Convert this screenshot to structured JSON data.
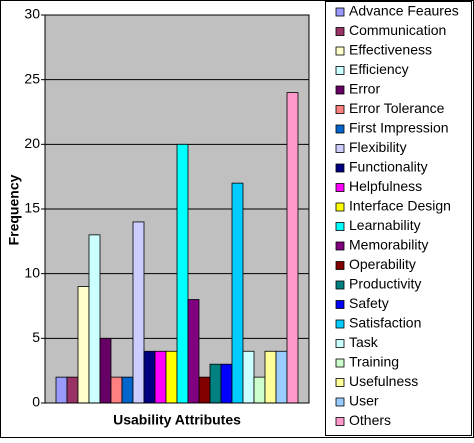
{
  "chart_data": {
    "type": "bar",
    "x_label": "Usability Attributes",
    "y_label": "Frequency",
    "categories": [
      null
    ],
    "ylim": [
      0,
      30
    ],
    "yticks": [
      0,
      5,
      10,
      15,
      20,
      25,
      30
    ],
    "grid": true,
    "legend": "right",
    "series": [
      {
        "name": "Advance Feaures",
        "color": "#9999ff",
        "values": [
          2
        ]
      },
      {
        "name": "Communication",
        "color": "#993366",
        "values": [
          2
        ]
      },
      {
        "name": "Effectiveness",
        "color": "#ffffcc",
        "values": [
          9
        ]
      },
      {
        "name": "Efficiency",
        "color": "#ccffff",
        "values": [
          13
        ]
      },
      {
        "name": "Error",
        "color": "#660066",
        "values": [
          5
        ]
      },
      {
        "name": "Error Tolerance",
        "color": "#ff8080",
        "values": [
          2
        ]
      },
      {
        "name": "First Impression",
        "color": "#0066cc",
        "values": [
          2
        ]
      },
      {
        "name": "Flexibility",
        "color": "#ccccff",
        "values": [
          14
        ]
      },
      {
        "name": "Functionality",
        "color": "#000080",
        "values": [
          4
        ]
      },
      {
        "name": "Helpfulness",
        "color": "#ff00ff",
        "values": [
          4
        ]
      },
      {
        "name": "Interface Design",
        "color": "#ffff00",
        "values": [
          4
        ]
      },
      {
        "name": "Learnability",
        "color": "#00ffff",
        "values": [
          20
        ]
      },
      {
        "name": "Memorability",
        "color": "#800080",
        "values": [
          8
        ]
      },
      {
        "name": "Operability",
        "color": "#800000",
        "values": [
          2
        ]
      },
      {
        "name": "Productivity",
        "color": "#008080",
        "values": [
          3
        ]
      },
      {
        "name": "Safety",
        "color": "#0000ff",
        "values": [
          3
        ]
      },
      {
        "name": "Satisfaction",
        "color": "#00ccff",
        "values": [
          17
        ]
      },
      {
        "name": "Task",
        "color": "#ccffff",
        "values": [
          4
        ]
      },
      {
        "name": "Training",
        "color": "#ccffcc",
        "values": [
          2
        ]
      },
      {
        "name": "Usefulness",
        "color": "#ffff99",
        "values": [
          4
        ]
      },
      {
        "name": "User",
        "color": "#99ccff",
        "values": [
          4
        ]
      },
      {
        "name": "Others",
        "color": "#ff99cc",
        "values": [
          24
        ]
      }
    ]
  }
}
